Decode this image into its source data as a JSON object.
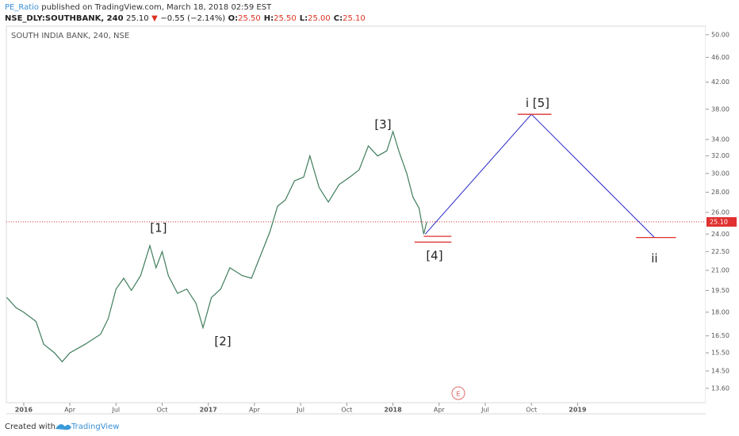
{
  "header": {
    "author": "PE_Ratio",
    "published": "published on TradingView.com, March 18, 2018 02:59 EST",
    "symbol": "NSE_DLY:SOUTHBANK, 240",
    "price": "25.10",
    "arrow": "▼",
    "change": "−0.55 (−2.14%)",
    "ohlc": [
      {
        "label": "O:",
        "value": "25.50"
      },
      {
        "label": "H:",
        "value": "25.50"
      },
      {
        "label": "L:",
        "value": "25.00"
      },
      {
        "label": "C:",
        "value": "25.10"
      }
    ]
  },
  "footer": {
    "text": "Created with",
    "brand": "TradingView"
  },
  "chart_data": {
    "type": "line",
    "title": "SOUTH INDIA BANK, 240, NSE",
    "log_scale": true,
    "color": "#3f7d5c",
    "x": [
      -1.1,
      -0.5,
      0,
      0.8,
      1.3,
      2.0,
      2.5,
      3.0,
      4.0,
      5.0,
      5.5,
      6.0,
      6.5,
      7.0,
      7.6,
      8.2,
      8.6,
      9.0,
      9.4,
      10.0,
      10.6,
      11.2,
      11.65,
      12.2,
      12.8,
      13.4,
      14.2,
      14.8,
      15.4,
      16.0,
      16.5,
      17.0,
      17.6,
      18.2,
      18.6,
      19.2,
      19.8,
      20.5,
      21.2,
      21.8,
      22.4,
      23.0,
      23.6,
      24.0,
      24.4,
      24.9,
      25.3,
      25.7,
      26.0,
      26.2
    ],
    "values": [
      19.0,
      18.3,
      18.0,
      17.4,
      16.0,
      15.5,
      15.0,
      15.5,
      16.0,
      16.6,
      17.6,
      19.6,
      20.4,
      19.5,
      20.6,
      23.0,
      21.2,
      22.5,
      20.6,
      19.3,
      19.6,
      18.6,
      17.0,
      19.0,
      19.6,
      21.2,
      20.6,
      20.4,
      22.2,
      24.2,
      26.6,
      27.2,
      29.2,
      29.6,
      32.0,
      28.5,
      27.0,
      28.8,
      29.6,
      30.4,
      33.2,
      32.0,
      32.6,
      35.0,
      32.5,
      30.0,
      27.5,
      26.4,
      24.0,
      25.1
    ],
    "xlim": [
      -1.13,
      44.33
    ],
    "ylim": [
      12.9,
      51.6
    ],
    "xticks": [
      {
        "value": 0,
        "label": "2016"
      },
      {
        "value": 3,
        "label": "Apr"
      },
      {
        "value": 6,
        "label": "Jul"
      },
      {
        "value": 9,
        "label": "Oct"
      },
      {
        "value": 12,
        "label": "2017"
      },
      {
        "value": 15,
        "label": "Apr"
      },
      {
        "value": 18,
        "label": "Jul"
      },
      {
        "value": 21,
        "label": "Oct"
      },
      {
        "value": 24,
        "label": "2018"
      },
      {
        "value": 27,
        "label": "Apr"
      },
      {
        "value": 30,
        "label": "Jul"
      },
      {
        "value": 33,
        "label": "Oct"
      },
      {
        "value": 36,
        "label": "2019"
      }
    ],
    "yticks": [
      {
        "value": 13.6,
        "label": "13.60"
      },
      {
        "value": 14.5,
        "label": "14.50"
      },
      {
        "value": 15.5,
        "label": "15.50"
      },
      {
        "value": 16.5,
        "label": "16.50"
      },
      {
        "value": 18,
        "label": "18.00"
      },
      {
        "value": 19.5,
        "label": "19.50"
      },
      {
        "value": 21,
        "label": "21.00"
      },
      {
        "value": 22.5,
        "label": "22.50"
      },
      {
        "value": 24,
        "label": "24.00"
      },
      {
        "value": 26,
        "label": "26.00"
      },
      {
        "value": 28,
        "label": "28.00"
      },
      {
        "value": 30,
        "label": "30.00"
      },
      {
        "value": 32,
        "label": "32.00"
      },
      {
        "value": 34,
        "label": "34.00"
      },
      {
        "value": 38,
        "label": "38.00"
      },
      {
        "value": 42,
        "label": "42.00"
      },
      {
        "value": 46,
        "label": "46.00"
      },
      {
        "value": 50,
        "label": "50.00"
      }
    ],
    "last_value": {
      "value": 25.1,
      "label": "25.10",
      "color": "#e03030"
    },
    "projection": {
      "x": [
        26.1,
        33.0,
        41.0
      ],
      "values": [
        24.0,
        37.3,
        23.7
      ],
      "color": "#2727c8"
    },
    "levels": [
      {
        "x": [
          26.0,
          27.8
        ],
        "value": 23.8
      },
      {
        "x": [
          25.4,
          27.8
        ],
        "value": 23.3
      },
      {
        "x": [
          32.1,
          34.3
        ],
        "value": 37.3
      },
      {
        "x": [
          39.8,
          42.4
        ],
        "value": 23.7
      }
    ],
    "level_color": "#e03030",
    "annotations": [
      {
        "text": "[1]",
        "x": 8.76,
        "y": 24.5
      },
      {
        "text": "[2]",
        "x": 12.94,
        "y": 16.15
      },
      {
        "text": "[3]",
        "x": 23.35,
        "y": 35.9
      },
      {
        "text": "[4]",
        "x": 26.7,
        "y": 22.15
      },
      {
        "text": "i [5]",
        "x": 33.4,
        "y": 38.8
      },
      {
        "text": "ii",
        "x": 41.0,
        "y": 21.9
      }
    ],
    "event_marker": "E"
  }
}
